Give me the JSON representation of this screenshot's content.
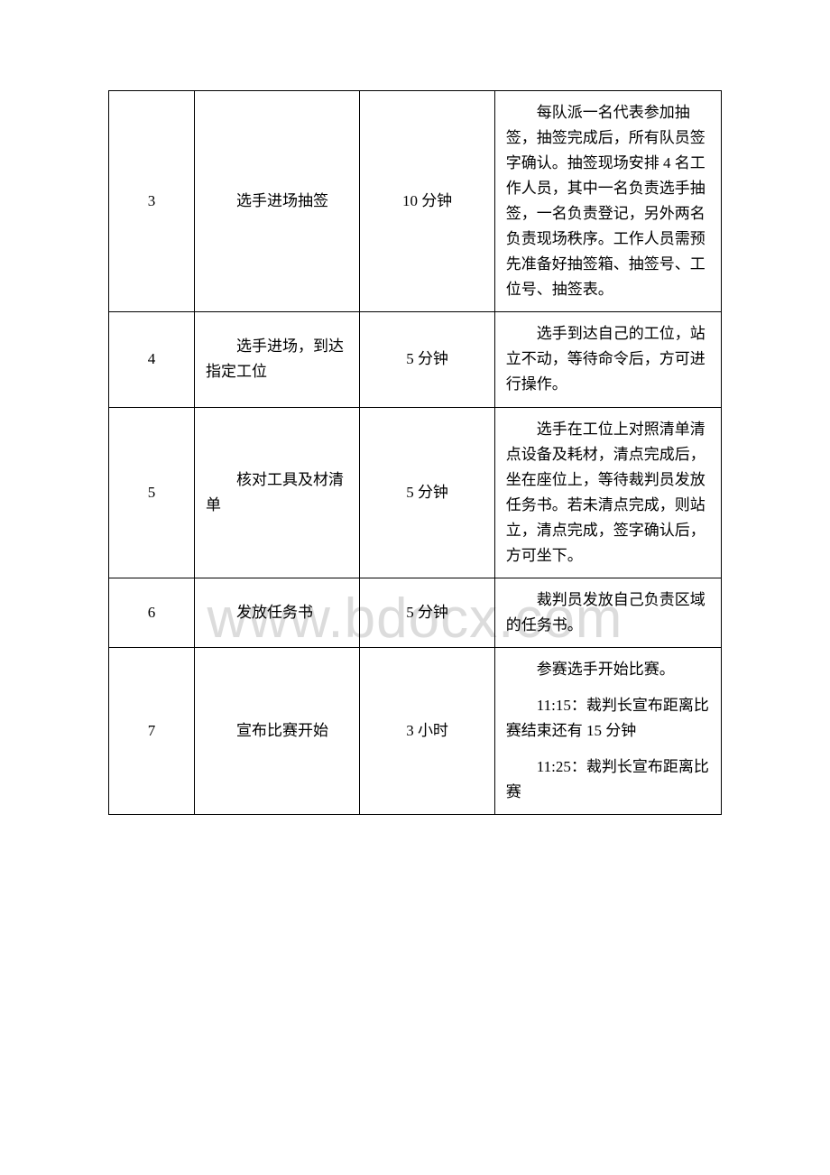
{
  "watermark": "www.bdocx.com",
  "table": {
    "columns": [
      "num",
      "step",
      "time",
      "desc"
    ],
    "col_widths": [
      "14%",
      "27%",
      "22%",
      "37%"
    ],
    "border_color": "#000000",
    "font_size": 17,
    "line_height": 1.65,
    "rows": [
      {
        "num": "3",
        "step": "选手进场抽签",
        "time": "10 分钟",
        "desc": "每队派一名代表参加抽签，抽签完成后，所有队员签字确认。抽签现场安排 4 名工作人员，其中一名负责选手抽签，一名负责登记，另外两名负责现场秩序。工作人员需预先准备好抽签箱、抽签号、工位号、抽签表。"
      },
      {
        "num": "4",
        "step": "选手进场，到达指定工位",
        "time": "5 分钟",
        "desc": "选手到达自己的工位，站立不动，等待命令后，方可进行操作。"
      },
      {
        "num": "5",
        "step": "核对工具及材清单",
        "time": "5 分钟",
        "desc": "选手在工位上对照清单清点设备及耗材，清点完成后，坐在座位上，等待裁判员发放任务书。若未清点完成，则站立，清点完成，签字确认后，方可坐下。"
      },
      {
        "num": "6",
        "step": "发放任务书",
        "time": "5 分钟",
        "desc": "裁判员发放自己负责区域的任务书。"
      },
      {
        "num": "7",
        "step": "宣布比赛开始",
        "time": "3 小时",
        "desc_paras": [
          "参赛选手开始比赛。",
          "11:15：裁判长宣布距离比赛结束还有 15 分钟",
          "11:25：裁判长宣布距离比赛"
        ]
      }
    ]
  },
  "colors": {
    "text": "#000000",
    "background": "#ffffff",
    "watermark": "#dcdcdc",
    "border": "#000000"
  }
}
